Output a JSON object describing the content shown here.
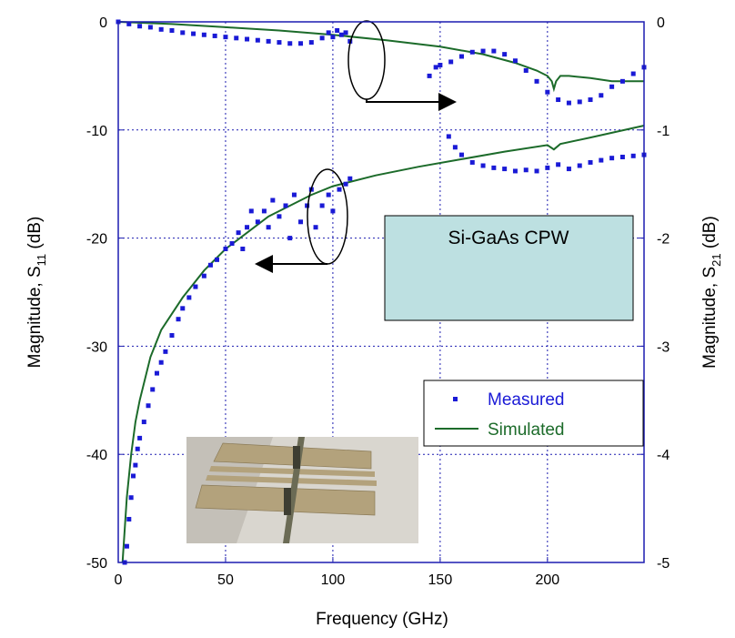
{
  "chart_data": {
    "type": "scatter-line",
    "xlabel": "Frequency (GHz)",
    "ylabel": {
      "text": "Magnitude, S",
      "sub": "11",
      "unit": "(dB)"
    },
    "y2label": {
      "text": "Magnitude, S",
      "sub": "21",
      "unit": "(dB)"
    },
    "xlim": [
      0,
      245
    ],
    "xticks": [
      0,
      50,
      100,
      150,
      200
    ],
    "ylim": [
      -50,
      0
    ],
    "yticks": [
      -50,
      -40,
      -30,
      -20,
      -10,
      0
    ],
    "y2lim": [
      -5,
      0
    ],
    "y2ticks": [
      -5,
      -4,
      -3,
      -2,
      -1,
      0
    ],
    "grid": true,
    "annotation": "Si-GaAs CPW",
    "legend_position": "lower right",
    "legend": [
      {
        "name": "Measured",
        "color": "#1a1ad6",
        "kind": "scatter"
      },
      {
        "name": "Simulated",
        "color": "#1c6b2a",
        "kind": "line"
      }
    ],
    "series": [
      {
        "kind": "line",
        "axis": "y",
        "color": "#1c6b2a",
        "x": [
          2,
          4,
          6,
          8,
          10,
          15,
          20,
          30,
          40,
          50,
          60,
          70,
          80,
          90,
          100,
          120,
          140,
          160,
          180,
          200,
          203,
          206,
          220,
          245
        ],
        "values": [
          -50,
          -44,
          -40,
          -37,
          -35,
          -31,
          -28.5,
          -25.5,
          -23,
          -21,
          -19.5,
          -18,
          -17,
          -16,
          -15.2,
          -14.2,
          -13.4,
          -12.7,
          -12,
          -11.4,
          -11.8,
          -11.3,
          -10.7,
          -9.6
        ]
      },
      {
        "kind": "line",
        "axis": "y2",
        "color": "#1c6b2a",
        "x": [
          0,
          25,
          50,
          75,
          100,
          125,
          150,
          170,
          185,
          195,
          200,
          202,
          203,
          204,
          206,
          210,
          220,
          230,
          245
        ],
        "values": [
          0,
          -0.02,
          -0.05,
          -0.08,
          -0.12,
          -0.17,
          -0.23,
          -0.3,
          -0.38,
          -0.45,
          -0.5,
          -0.55,
          -0.62,
          -0.55,
          -0.5,
          -0.5,
          -0.52,
          -0.55,
          -0.55
        ]
      },
      {
        "kind": "scatter",
        "axis": "y",
        "color": "#1a1ad6",
        "x": [
          3,
          4,
          5,
          6,
          7,
          8,
          9,
          10,
          12,
          14,
          16,
          18,
          20,
          22,
          25,
          28,
          30,
          33,
          36,
          40,
          43,
          46,
          50,
          53,
          56,
          58,
          60,
          62,
          65,
          68,
          70,
          72,
          75,
          78,
          80,
          82,
          85,
          88,
          90,
          92,
          95,
          98,
          100,
          103,
          106,
          108,
          154,
          157,
          160,
          165,
          170,
          175,
          180,
          185,
          190,
          195,
          200,
          205,
          210,
          215,
          220,
          225,
          230,
          235,
          240,
          245
        ],
        "values": [
          -50,
          -48.5,
          -46,
          -44,
          -42,
          -41,
          -39.5,
          -38.5,
          -37,
          -35.5,
          -34,
          -32.5,
          -31.5,
          -30.5,
          -29,
          -27.5,
          -26.5,
          -25.5,
          -24.5,
          -23.5,
          -22.5,
          -22,
          -21,
          -20.5,
          -19.5,
          -21,
          -19,
          -17.5,
          -18.5,
          -17.5,
          -19,
          -16.5,
          -18,
          -17,
          -20,
          -16,
          -18.5,
          -17,
          -15.5,
          -19,
          -17,
          -16,
          -17.5,
          -15.5,
          -15,
          -14.5,
          -10.6,
          -11.6,
          -12.3,
          -13,
          -13.3,
          -13.5,
          -13.6,
          -13.8,
          -13.7,
          -13.8,
          -13.5,
          -13.2,
          -13.6,
          -13.3,
          -13,
          -12.8,
          -12.6,
          -12.5,
          -12.4,
          -12.3
        ]
      },
      {
        "kind": "scatter",
        "axis": "y2",
        "color": "#1a1ad6",
        "x": [
          0,
          5,
          10,
          15,
          20,
          25,
          30,
          35,
          40,
          45,
          50,
          55,
          60,
          65,
          70,
          75,
          80,
          85,
          90,
          95,
          98,
          100,
          102,
          104,
          106,
          108,
          145,
          148,
          150,
          155,
          160,
          165,
          170,
          175,
          180,
          185,
          190,
          195,
          200,
          205,
          210,
          215,
          220,
          225,
          230,
          235,
          240,
          245
        ],
        "values": [
          0,
          -0.02,
          -0.04,
          -0.05,
          -0.07,
          -0.08,
          -0.1,
          -0.11,
          -0.12,
          -0.13,
          -0.14,
          -0.15,
          -0.16,
          -0.17,
          -0.18,
          -0.19,
          -0.2,
          -0.2,
          -0.19,
          -0.15,
          -0.1,
          -0.14,
          -0.08,
          -0.12,
          -0.1,
          -0.18,
          -0.5,
          -0.42,
          -0.4,
          -0.37,
          -0.32,
          -0.28,
          -0.27,
          -0.27,
          -0.3,
          -0.36,
          -0.45,
          -0.55,
          -0.65,
          -0.72,
          -0.75,
          -0.74,
          -0.72,
          -0.68,
          -0.6,
          -0.55,
          -0.48,
          -0.42
        ]
      }
    ]
  }
}
